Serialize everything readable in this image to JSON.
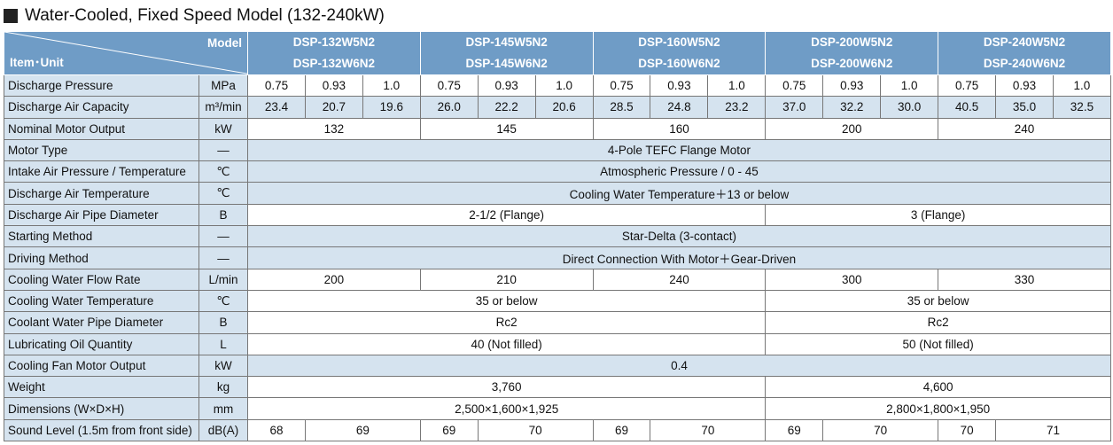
{
  "title": "Water-Cooled, Fixed Speed Model (132-240kW)",
  "header": {
    "model_label": "Model",
    "item_unit_label": "Item･Unit",
    "models": [
      [
        "DSP-132W5N2",
        "DSP-132W6N2"
      ],
      [
        "DSP-145W5N2",
        "DSP-145W6N2"
      ],
      [
        "DSP-160W5N2",
        "DSP-160W6N2"
      ],
      [
        "DSP-200W5N2",
        "DSP-200W6N2"
      ],
      [
        "DSP-240W5N2",
        "DSP-240W6N2"
      ]
    ]
  },
  "rows": [
    {
      "item": "Discharge Pressure",
      "unit": "MPa",
      "cells": [
        "0.75",
        "0.93",
        "1.0",
        "0.75",
        "0.93",
        "1.0",
        "0.75",
        "0.93",
        "1.0",
        "0.75",
        "0.93",
        "1.0",
        "0.75",
        "0.93",
        "1.0"
      ]
    },
    {
      "item": "Discharge Air Capacity",
      "unit": "m³/min",
      "cells": [
        "23.4",
        "20.7",
        "19.6",
        "26.0",
        "22.2",
        "20.6",
        "28.5",
        "24.8",
        "23.2",
        "37.0",
        "32.2",
        "30.0",
        "40.5",
        "35.0",
        "32.5"
      ]
    },
    {
      "item": "Nominal Motor Output",
      "unit": "kW",
      "cells": [
        "132",
        "145",
        "160",
        "200",
        "240"
      ]
    },
    {
      "item": "Motor Type",
      "unit": "—",
      "cells": [
        "4-Pole TEFC Flange Motor"
      ]
    },
    {
      "item": "Intake Air Pressure / Temperature",
      "unit": "℃",
      "cells": [
        "Atmospheric Pressure / 0 - 45"
      ]
    },
    {
      "item": "Discharge Air Temperature",
      "unit": "℃",
      "cells": [
        "Cooling Water Temperature＋13 or below"
      ]
    },
    {
      "item": "Discharge Air Pipe Diameter",
      "unit": "B",
      "cells": [
        "2-1/2 (Flange)",
        "3 (Flange)"
      ]
    },
    {
      "item": "Starting Method",
      "unit": "—",
      "cells": [
        "Star-Delta (3-contact)"
      ]
    },
    {
      "item": "Driving Method",
      "unit": "—",
      "cells": [
        "Direct Connection With Motor＋Gear-Driven"
      ]
    },
    {
      "item": "Cooling Water Flow Rate",
      "unit": "L/min",
      "cells": [
        "200",
        "210",
        "240",
        "300",
        "330"
      ]
    },
    {
      "item": "Cooling Water Temperature",
      "unit": "℃",
      "cells": [
        "35 or below",
        "35 or below"
      ]
    },
    {
      "item": "Coolant Water Pipe Diameter",
      "unit": "B",
      "cells": [
        "Rc2",
        "Rc2"
      ]
    },
    {
      "item": "Lubricating Oil Quantity",
      "unit": "L",
      "cells": [
        "40 (Not filled)",
        "50 (Not filled)"
      ]
    },
    {
      "item": "Cooling Fan Motor Output",
      "unit": "kW",
      "cells": [
        "0.4"
      ]
    },
    {
      "item": "Weight",
      "unit": "kg",
      "cells": [
        "3,760",
        "4,600"
      ]
    },
    {
      "item": "Dimensions (W×D×H)",
      "unit": "mm",
      "cells": [
        "2,500×1,600×1,925",
        "2,800×1,800×1,950"
      ]
    },
    {
      "item": "Sound Level (1.5m from front side)",
      "unit": "dB(A)",
      "cells": [
        "68",
        "69",
        "69",
        "70",
        "69",
        "70",
        "69",
        "70",
        "70",
        "71"
      ]
    }
  ]
}
